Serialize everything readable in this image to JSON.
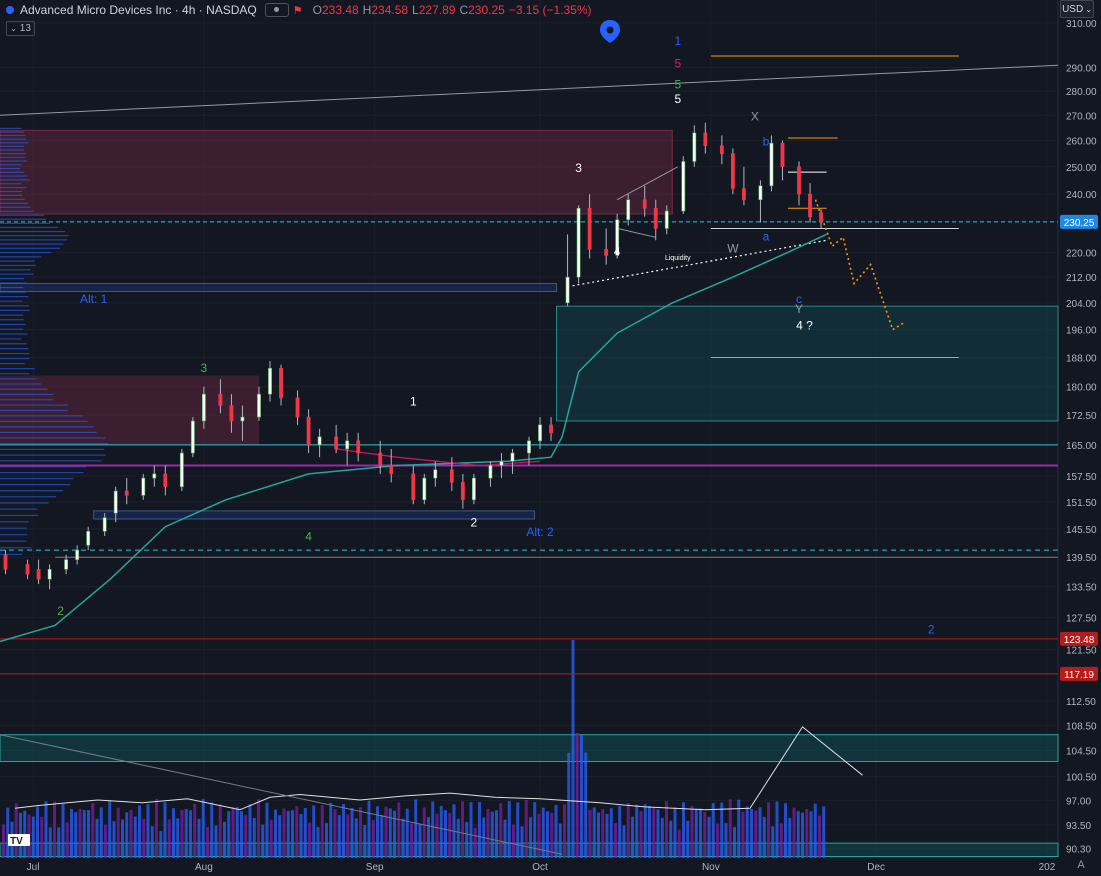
{
  "header": {
    "symbol": "Advanced Micro Devices Inc · 4h · NASDAQ",
    "o_label": "O",
    "o_value": "233.48",
    "h_label": "H",
    "h_value": "234.58",
    "l_label": "L",
    "l_value": "227.89",
    "c_label": "C",
    "c_value": "230.25",
    "change": "−3.15 (−1.35%)",
    "indicator_badge": "13"
  },
  "currency_button": "USD",
  "chart_data": {
    "type": "candlestick",
    "y_scale": "log",
    "ylim": [
      89,
      316
    ],
    "y_ticks": [
      "310.00",
      "290.00",
      "280.00",
      "270.00",
      "260.00",
      "250.00",
      "240.00",
      "230.25",
      "220.00",
      "212.00",
      "204.00",
      "196.00",
      "188.00",
      "180.00",
      "172.50",
      "165.00",
      "157.50",
      "151.50",
      "145.50",
      "139.50",
      "133.50",
      "127.50",
      "123.48",
      "121.50",
      "117.19",
      "112.50",
      "108.50",
      "104.50",
      "100.50",
      "97.00",
      "93.50",
      "90.30"
    ],
    "price_badges": [
      {
        "label": "230.25",
        "value": 230.25,
        "color": "#1e88e5"
      },
      {
        "label": "123.48",
        "value": 123.48,
        "color": "#b71c1c"
      },
      {
        "label": "117.19",
        "value": 117.19,
        "color": "#b71c1c"
      }
    ],
    "x_ticks": [
      {
        "label": "Jul",
        "date": "2025-07-01"
      },
      {
        "label": "Aug",
        "date": "2025-08-01"
      },
      {
        "label": "Sep",
        "date": "2025-09-01"
      },
      {
        "label": "Oct",
        "date": "2025-10-01"
      },
      {
        "label": "Nov",
        "date": "2025-11-01"
      },
      {
        "label": "Dec",
        "date": "2025-12-01"
      },
      {
        "label": "202",
        "date": "2026-01-01"
      }
    ],
    "xlim": [
      "2025-06-25",
      "2026-01-03"
    ],
    "ohlc_series": [
      [
        "2025-06-26",
        140,
        141,
        136,
        137
      ],
      [
        "2025-06-30",
        138,
        139,
        135,
        136
      ],
      [
        "2025-07-02",
        137,
        139,
        134,
        135
      ],
      [
        "2025-07-04",
        135,
        138,
        133,
        137
      ],
      [
        "2025-07-07",
        137,
        140,
        136,
        139
      ],
      [
        "2025-07-09",
        139,
        142,
        138,
        141
      ],
      [
        "2025-07-11",
        142,
        146,
        141,
        145
      ],
      [
        "2025-07-14",
        145,
        149,
        144,
        148
      ],
      [
        "2025-07-16",
        149,
        155,
        147,
        154
      ],
      [
        "2025-07-18",
        154,
        157,
        151,
        153
      ],
      [
        "2025-07-21",
        153,
        158,
        152,
        157
      ],
      [
        "2025-07-23",
        157,
        160,
        155,
        158
      ],
      [
        "2025-07-25",
        158,
        160,
        153,
        155
      ],
      [
        "2025-07-28",
        155,
        164,
        154,
        163
      ],
      [
        "2025-07-30",
        163,
        172,
        162,
        171
      ],
      [
        "2025-08-01",
        171,
        180,
        169,
        178
      ],
      [
        "2025-08-04",
        178,
        182,
        173,
        175
      ],
      [
        "2025-08-06",
        175,
        178,
        168,
        171
      ],
      [
        "2025-08-08",
        171,
        175,
        166,
        172
      ],
      [
        "2025-08-11",
        172,
        180,
        171,
        178
      ],
      [
        "2025-08-13",
        178,
        187,
        176,
        185
      ],
      [
        "2025-08-15",
        185,
        186,
        175,
        177
      ],
      [
        "2025-08-18",
        177,
        179,
        170,
        172
      ],
      [
        "2025-08-20",
        172,
        174,
        163,
        165
      ],
      [
        "2025-08-22",
        165,
        169,
        162,
        167
      ],
      [
        "2025-08-25",
        167,
        170,
        163,
        164
      ],
      [
        "2025-08-27",
        164,
        168,
        160,
        166
      ],
      [
        "2025-08-29",
        166,
        168,
        161,
        163
      ],
      [
        "2025-09-02",
        163,
        166,
        158,
        160
      ],
      [
        "2025-09-04",
        160,
        164,
        156,
        158
      ],
      [
        "2025-09-08",
        158,
        160,
        151,
        152
      ],
      [
        "2025-09-10",
        152,
        158,
        151,
        157
      ],
      [
        "2025-09-12",
        157,
        161,
        155,
        159
      ],
      [
        "2025-09-15",
        159,
        162,
        154,
        156
      ],
      [
        "2025-09-17",
        156,
        158,
        150,
        152
      ],
      [
        "2025-09-19",
        152,
        158,
        151,
        157
      ],
      [
        "2025-09-22",
        157,
        161,
        155,
        160
      ],
      [
        "2025-09-24",
        160,
        163,
        157,
        161
      ],
      [
        "2025-09-26",
        161,
        164,
        158,
        163
      ],
      [
        "2025-09-29",
        163,
        167,
        160,
        166
      ],
      [
        "2025-10-01",
        166,
        172,
        164,
        170
      ],
      [
        "2025-10-03",
        170,
        172,
        166,
        168
      ],
      [
        "2025-10-06",
        204,
        226,
        203,
        212
      ],
      [
        "2025-10-08",
        212,
        236,
        210,
        235
      ],
      [
        "2025-10-10",
        235,
        240,
        218,
        221
      ],
      [
        "2025-10-13",
        221,
        228,
        216,
        219
      ],
      [
        "2025-10-15",
        219,
        233,
        218,
        231
      ],
      [
        "2025-10-17",
        231,
        240,
        229,
        238
      ],
      [
        "2025-10-20",
        238,
        243,
        232,
        235
      ],
      [
        "2025-10-22",
        235,
        238,
        224,
        228
      ],
      [
        "2025-10-24",
        228,
        236,
        226,
        234
      ],
      [
        "2025-10-27",
        234,
        254,
        233,
        252
      ],
      [
        "2025-10-29",
        252,
        266,
        250,
        263
      ],
      [
        "2025-10-31",
        263,
        267,
        255,
        258
      ],
      [
        "2025-11-03",
        258,
        262,
        251,
        255
      ],
      [
        "2025-11-05",
        255,
        257,
        240,
        242
      ],
      [
        "2025-11-07",
        242,
        250,
        236,
        238
      ],
      [
        "2025-11-10",
        238,
        245,
        230,
        243
      ],
      [
        "2025-11-12",
        243,
        262,
        241,
        259
      ],
      [
        "2025-11-14",
        259,
        260,
        245,
        250
      ],
      [
        "2025-11-17",
        250,
        252,
        236,
        240
      ],
      [
        "2025-11-19",
        240,
        244,
        230,
        232
      ],
      [
        "2025-11-21",
        233.48,
        234.58,
        227.89,
        230.25
      ]
    ],
    "volume_series": [
      [
        2,
        36
      ],
      [
        5,
        38
      ],
      [
        9,
        40
      ],
      [
        13,
        42
      ],
      [
        19,
        40
      ],
      [
        25,
        43
      ],
      [
        32,
        35
      ],
      [
        36,
        44
      ],
      [
        40,
        46
      ],
      [
        48,
        42
      ],
      [
        54,
        45
      ],
      [
        60,
        47
      ],
      [
        66,
        44
      ],
      [
        72,
        43
      ],
      [
        80,
        40
      ],
      [
        86,
        37
      ],
      [
        94,
        35
      ],
      [
        100,
        36
      ],
      [
        107,
        95
      ],
      [
        115,
        60
      ]
    ],
    "annotations": [
      {
        "text": "1",
        "date": "2025-10-26",
        "price": 300,
        "color": "#2962ff"
      },
      {
        "text": "5",
        "date": "2025-10-26",
        "price": 290,
        "color": "#e91e63"
      },
      {
        "text": "5",
        "date": "2025-10-26",
        "price": 281,
        "color": "#4caf50"
      },
      {
        "text": "5",
        "date": "2025-10-26",
        "price": 275,
        "color": "#ffffff"
      },
      {
        "text": "X",
        "date": "2025-11-09",
        "price": 268,
        "color": "#9598a1"
      },
      {
        "text": "b",
        "date": "2025-11-11",
        "price": 258,
        "color": "#2962ff"
      },
      {
        "text": "3",
        "date": "2025-10-08",
        "price": 248,
        "color": "#ffffff"
      },
      {
        "text": "4",
        "date": "2025-10-15",
        "price": 219,
        "color": "#ffffff"
      },
      {
        "text": "W",
        "date": "2025-11-05",
        "price": 220,
        "color": "#9598a1"
      },
      {
        "text": "a",
        "date": "2025-11-11",
        "price": 224,
        "color": "#2962ff"
      },
      {
        "text": "c",
        "date": "2025-11-17",
        "price": 204,
        "color": "#2962ff"
      },
      {
        "text": "Y",
        "date": "2025-11-17",
        "price": 201,
        "color": "#9598a1"
      },
      {
        "text": "4 ?",
        "date": "2025-11-18",
        "price": 196,
        "color": "#ffffff"
      },
      {
        "text": "Alt: 1",
        "date": "2025-07-12",
        "price": 204,
        "color": "#2962ff"
      },
      {
        "text": "3",
        "date": "2025-08-01",
        "price": 184,
        "color": "#4caf50"
      },
      {
        "text": "1",
        "date": "2025-09-08",
        "price": 175,
        "color": "#ffffff"
      },
      {
        "text": "2",
        "date": "2025-09-19",
        "price": 146,
        "color": "#ffffff"
      },
      {
        "text": "Alt: 2",
        "date": "2025-10-01",
        "price": 144,
        "color": "#2962ff"
      },
      {
        "text": "4",
        "date": "2025-08-20",
        "price": 143,
        "color": "#4caf50"
      },
      {
        "text": "2",
        "date": "2025-07-06",
        "price": 128,
        "color": "#4caf50"
      },
      {
        "text": "2",
        "date": "2025-12-11",
        "price": 124.5,
        "color": "#2962ff"
      },
      {
        "text": "Liquidity",
        "date": "2025-10-26",
        "price": 217.5,
        "color": "#ffffff"
      }
    ],
    "grid": true,
    "legend": "none"
  }
}
